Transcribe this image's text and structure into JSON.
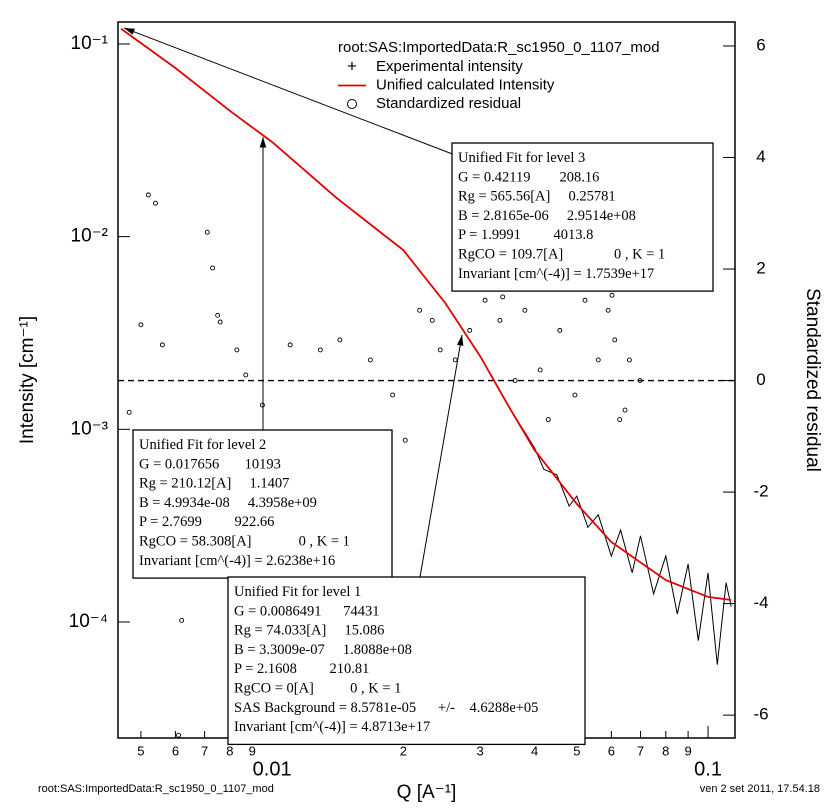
{
  "footer_left": "root:SAS:ImportedData:R_sc1950_0_1107_mod",
  "footer_right": "ven 2 set 2011, 17.54.18",
  "chart_data": {
    "type": "line",
    "legend_title": "root:SAS:ImportedData:R_sc1950_0_1107_mod",
    "x_label": "Q [A⁻¹]",
    "y_label": "Intensity [cm⁻¹]",
    "y2_label": "Standardized residual",
    "xlog": true,
    "ylog": true,
    "xlim": [
      0.00443,
      0.1153
    ],
    "ylim": [
      2.5e-05,
      0.13
    ],
    "y2lim": [
      -6.41,
      6.43
    ],
    "xticks": [
      {
        "value": 0.005,
        "label": "5"
      },
      {
        "value": 0.006,
        "label": "6"
      },
      {
        "value": 0.007,
        "label": "7"
      },
      {
        "value": 0.008,
        "label": "8"
      },
      {
        "value": 0.009,
        "label": "9"
      },
      0.01,
      {
        "value": 0.02,
        "label": "2"
      },
      {
        "value": 0.03,
        "label": "3"
      },
      {
        "value": 0.04,
        "label": "4"
      },
      {
        "value": 0.05,
        "label": "5"
      },
      {
        "value": 0.06,
        "label": "6"
      },
      {
        "value": 0.07,
        "label": "7"
      },
      {
        "value": 0.08,
        "label": "8"
      },
      {
        "value": 0.09,
        "label": "9"
      },
      0.1
    ],
    "yticks": [
      {
        "value": 0.1,
        "label": "10⁻¹"
      },
      {
        "value": 0.01,
        "label": "10⁻²"
      },
      {
        "value": 0.001,
        "label": "10⁻³"
      },
      {
        "value": 0.0001,
        "label": "10⁻⁴"
      }
    ],
    "y2ticks": [
      6,
      4,
      2,
      0,
      -2,
      -4,
      -6
    ],
    "series": [
      {
        "name": "Experimental intensity",
        "marker": "+",
        "color": "#000000",
        "x": [
          0.0045,
          0.006,
          0.008,
          0.01,
          0.014,
          0.02,
          0.025,
          0.03,
          0.035,
          0.04,
          0.042,
          0.045,
          0.048,
          0.05,
          0.053,
          0.056,
          0.06,
          0.063,
          0.067,
          0.07,
          0.075,
          0.08,
          0.085,
          0.09,
          0.095,
          0.1,
          0.105,
          0.11,
          0.113
        ],
        "values": [
          0.12,
          0.075,
          0.045,
          0.031,
          0.016,
          0.0085,
          0.0045,
          0.0024,
          0.0013,
          0.0008,
          0.00062,
          0.00058,
          0.0004,
          0.00045,
          0.00031,
          0.00036,
          0.00022,
          0.0003,
          0.00018,
          0.00028,
          0.00014,
          0.00022,
          0.00011,
          0.0002,
          8e-05,
          0.00018,
          6e-05,
          0.00016,
          0.00012
        ]
      },
      {
        "name": "Unified calculated Intensity",
        "color": "#e00000",
        "x": [
          0.0045,
          0.006,
          0.008,
          0.01,
          0.014,
          0.02,
          0.025,
          0.03,
          0.035,
          0.04,
          0.05,
          0.06,
          0.08,
          0.1,
          0.113
        ],
        "values": [
          0.12,
          0.075,
          0.045,
          0.031,
          0.016,
          0.0085,
          0.0045,
          0.0024,
          0.0013,
          0.00078,
          0.00041,
          0.00026,
          0.000165,
          0.000135,
          0.00013
        ]
      },
      {
        "name": "Standardized residual",
        "marker": "o",
        "axis": "y2",
        "color": "#000000",
        "x": [
          0.0052,
          0.0054,
          0.005,
          0.0056,
          0.0047,
          0.0071,
          0.0073,
          0.0075,
          0.0076,
          0.0083,
          0.0087,
          0.0095,
          0.0062,
          0.0061,
          0.011,
          0.0129,
          0.0143,
          0.0168,
          0.0189,
          0.0202,
          0.0218,
          0.0233,
          0.0243,
          0.0263,
          0.0284,
          0.0308,
          0.0333,
          0.0338,
          0.0361,
          0.038,
          0.0412,
          0.043,
          0.0457,
          0.0495,
          0.0522,
          0.056,
          0.059,
          0.0611,
          0.0627,
          0.066,
          0.0698,
          0.0602,
          0.0645
        ],
        "values": [
          3.33,
          3.18,
          1.0,
          0.64,
          -0.57,
          2.66,
          2.02,
          1.17,
          1.05,
          0.55,
          0.1,
          -0.44,
          -4.3,
          -6.36,
          0.64,
          0.55,
          0.73,
          0.37,
          -0.26,
          -1.07,
          1.26,
          1.08,
          0.55,
          0.37,
          0.9,
          1.44,
          1.08,
          1.5,
          0.0,
          1.26,
          0.19,
          -0.7,
          0.9,
          -0.26,
          1.44,
          0.37,
          1.26,
          0.73,
          -0.7,
          0.37,
          0.0,
          1.53,
          -0.53
        ]
      }
    ],
    "annotations": [
      {
        "lines": [
          "Unified Fit for level 3",
          "G = 0.42119        208.16",
          "Rg = 565.56[A]     0.25781",
          "B = 2.8165e-06     2.9514e+08",
          "P = 1.9991         4013.8",
          "RgCO = 109.7[A]              0 , K = 1",
          "Invariant [cm^(-4)] = 1.7539e+17"
        ]
      },
      {
        "lines": [
          "Unified Fit for level 2",
          "G = 0.017656       10193",
          "Rg = 210.12[A]     1.1407",
          "B = 4.9934e-08     4.3958e+09",
          "P = 2.7699         922.66",
          "RgCO = 58.308[A]             0 , K = 1",
          "Invariant [cm^(-4)] = 2.6238e+16"
        ]
      },
      {
        "lines": [
          "Unified Fit for level 1",
          "G = 0.0086491      74431",
          "Rg = 74.033[A]     15.086",
          "B = 3.3009e-07     1.8088e+08",
          "P = 2.1608         210.81",
          "RgCO = 0[A]          0 , K = 1",
          "SAS Background = 8.5781e-05      +/-    4.6288e+05",
          "Invariant [cm^(-4)] = 4.8713e+17"
        ]
      }
    ]
  }
}
